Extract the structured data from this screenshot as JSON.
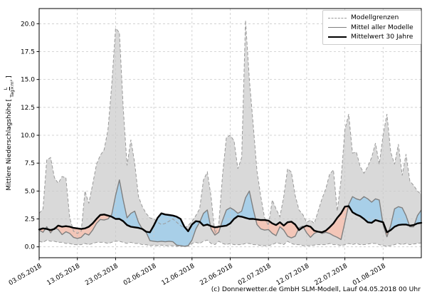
{
  "chart_data": {
    "type": "line",
    "title": "",
    "ylabel": {
      "main": "Mittlere Niederschlagshöhe",
      "bracket_open": "[",
      "unit_numerator": "L",
      "unit_denominator": "Tag×m²",
      "bracket_close": "]"
    },
    "caption": "(c) Donnerwetter.de GmbH SLM-Modell, Lauf 04.05.2018 00 Uhr",
    "grid": true,
    "ylim": [
      0,
      20
    ],
    "y_ticks": [
      0.0,
      2.5,
      5.0,
      7.5,
      10.0,
      12.5,
      15.0,
      17.5,
      20.0
    ],
    "x_tick_days": [
      0,
      10,
      20,
      30,
      40,
      50,
      60,
      70,
      80,
      90
    ],
    "x_tick_labels": [
      "03.05.2018",
      "13.05.2018",
      "23.05.2018",
      "02.06.2018",
      "12.06.2018",
      "22.06.2018",
      "02.07.2018",
      "12.07.2018",
      "22.07.2018",
      "01.08.2018"
    ],
    "legend": {
      "position": "upper right",
      "entries": [
        {
          "label": "Modellgrenzen",
          "style": "dashed-gray"
        },
        {
          "label": "Mittel aller Modelle",
          "style": "solid-gray"
        },
        {
          "label": "Mittelwert 30 Jahre",
          "style": "solid-black"
        }
      ]
    },
    "colors": {
      "band_fill": "#d9d9d9",
      "band_edge": "#999999",
      "model_mean_line": "#7f7f7f",
      "mean30_line": "#000000",
      "above_normal_fill": "#a8cfe8",
      "below_normal_fill": "#f3c6b8",
      "grid": "#c9c9c9",
      "spine": "#000000"
    },
    "series": [
      {
        "name": "Modellgrenzen (oben)",
        "role": "band_upper",
        "values": [
          3.0,
          3.4,
          7.8,
          8.0,
          6.2,
          5.7,
          6.3,
          6.2,
          2.6,
          1.4,
          1.2,
          1.4,
          5.0,
          3.9,
          5.6,
          7.4,
          8.2,
          8.7,
          10.5,
          14.5,
          19.6,
          19.2,
          12.5,
          7.3,
          9.6,
          7.5,
          4.5,
          3.6,
          3.0,
          2.6,
          2.5,
          2.2,
          2.0,
          2.1,
          2.3,
          2.5,
          2.2,
          1.9,
          1.7,
          1.9,
          2.3,
          2.8,
          3.4,
          6.0,
          6.7,
          4.5,
          1.2,
          2.0,
          6.5,
          9.8,
          10.0,
          9.5,
          7.0,
          8.0,
          20.3,
          15.0,
          11.0,
          6.8,
          4.5,
          2.6,
          1.9,
          4.2,
          3.4,
          2.7,
          4.5,
          7.0,
          6.7,
          4.6,
          3.3,
          2.9,
          2.2,
          2.4,
          2.1,
          3.2,
          4.3,
          5.2,
          6.5,
          6.9,
          3.2,
          6.0,
          10.5,
          11.9,
          8.4,
          8.5,
          7.2,
          6.6,
          7.2,
          8.0,
          9.3,
          7.4,
          10.0,
          11.9,
          8.5,
          7.4,
          9.2,
          6.4,
          8.3,
          5.9,
          5.5,
          5.0,
          4.7
        ]
      },
      {
        "name": "Modellgrenzen (unten)",
        "role": "band_lower",
        "values": [
          0.5,
          0.4,
          0.6,
          0.5,
          0.5,
          0.4,
          0.4,
          0.3,
          0.3,
          0.2,
          0.2,
          0.2,
          0.3,
          0.2,
          0.3,
          0.4,
          0.4,
          0.4,
          0.3,
          0.4,
          0.5,
          0.5,
          0.4,
          0.3,
          0.4,
          0.3,
          0.3,
          0.2,
          0.2,
          0.1,
          0.15,
          0.1,
          0.15,
          0.1,
          0.1,
          0.1,
          0.05,
          0.05,
          0.05,
          0.05,
          0.3,
          0.4,
          0.3,
          0.5,
          0.6,
          0.3,
          0.2,
          0.5,
          0.3,
          0.2,
          0.3,
          0.2,
          0.2,
          0.2,
          0.3,
          0.3,
          0.2,
          0.2,
          0.1,
          0.1,
          0.1,
          0.2,
          0.35,
          0.3,
          0.2,
          0.5,
          0.3,
          0.2,
          0.2,
          0.1,
          0.1,
          0.1,
          0.15,
          0.2,
          0.2,
          0.2,
          0.3,
          0.2,
          0.2,
          0.1,
          0.2,
          0.3,
          0.2,
          0.3,
          0.2,
          0.2,
          0.25,
          0.3,
          0.3,
          0.2,
          0.1,
          0.05,
          0.1,
          0.2,
          0.3,
          0.2,
          0.3,
          0.2,
          0.25,
          0.3,
          0.35
        ]
      },
      {
        "name": "Mittel aller Modelle",
        "role": "model_mean",
        "values": [
          1.5,
          1.3,
          1.8,
          1.25,
          1.7,
          1.55,
          1.1,
          1.35,
          1.2,
          0.85,
          0.75,
          0.85,
          1.2,
          1.05,
          1.5,
          2.1,
          2.45,
          2.4,
          2.5,
          2.9,
          4.6,
          6.0,
          4.2,
          2.6,
          3.0,
          3.2,
          2.2,
          1.6,
          1.3,
          0.55,
          0.5,
          0.45,
          0.5,
          0.45,
          0.5,
          0.45,
          0.15,
          0.1,
          0.05,
          0.1,
          0.6,
          1.6,
          2.2,
          3.0,
          3.3,
          1.6,
          1.05,
          1.3,
          2.4,
          3.3,
          3.5,
          3.3,
          3.0,
          3.2,
          4.4,
          5.0,
          3.4,
          2.0,
          1.6,
          1.5,
          1.55,
          1.2,
          1.0,
          1.8,
          1.5,
          0.95,
          0.8,
          0.95,
          1.7,
          1.85,
          1.25,
          0.85,
          1.2,
          1.35,
          1.2,
          1.3,
          1.2,
          1.0,
          0.85,
          0.65,
          2.2,
          3.8,
          4.5,
          4.3,
          4.2,
          4.5,
          4.3,
          4.0,
          4.3,
          4.2,
          2.0,
          0.9,
          1.9,
          3.4,
          3.6,
          3.5,
          2.8,
          1.8,
          1.8,
          2.8,
          3.3
        ]
      },
      {
        "name": "Mittelwert 30 Jahre",
        "role": "mean_30yr",
        "values": [
          1.55,
          1.65,
          1.6,
          1.5,
          1.6,
          1.9,
          1.8,
          1.85,
          1.8,
          1.7,
          1.65,
          1.6,
          1.65,
          1.8,
          2.1,
          2.5,
          2.85,
          2.9,
          2.8,
          2.7,
          2.5,
          2.5,
          2.3,
          1.95,
          1.8,
          1.75,
          1.7,
          1.6,
          1.35,
          1.3,
          1.9,
          2.6,
          3.0,
          2.9,
          2.85,
          2.8,
          2.7,
          2.5,
          1.8,
          1.4,
          2.0,
          2.3,
          2.25,
          1.9,
          2.0,
          1.85,
          1.75,
          1.8,
          1.85,
          1.9,
          2.1,
          2.5,
          2.75,
          2.7,
          2.6,
          2.5,
          2.5,
          2.45,
          2.4,
          2.4,
          2.35,
          2.1,
          1.95,
          2.2,
          1.9,
          2.2,
          2.25,
          2.0,
          1.5,
          1.75,
          1.9,
          1.8,
          1.45,
          1.35,
          1.3,
          1.45,
          1.75,
          2.1,
          2.6,
          3.0,
          3.6,
          3.65,
          3.1,
          2.9,
          2.75,
          2.5,
          2.2,
          2.15,
          2.4,
          2.3,
          2.2,
          1.3,
          1.5,
          1.8,
          1.95,
          2.0,
          2.0,
          1.9,
          1.95,
          2.1,
          2.15
        ]
      }
    ]
  }
}
